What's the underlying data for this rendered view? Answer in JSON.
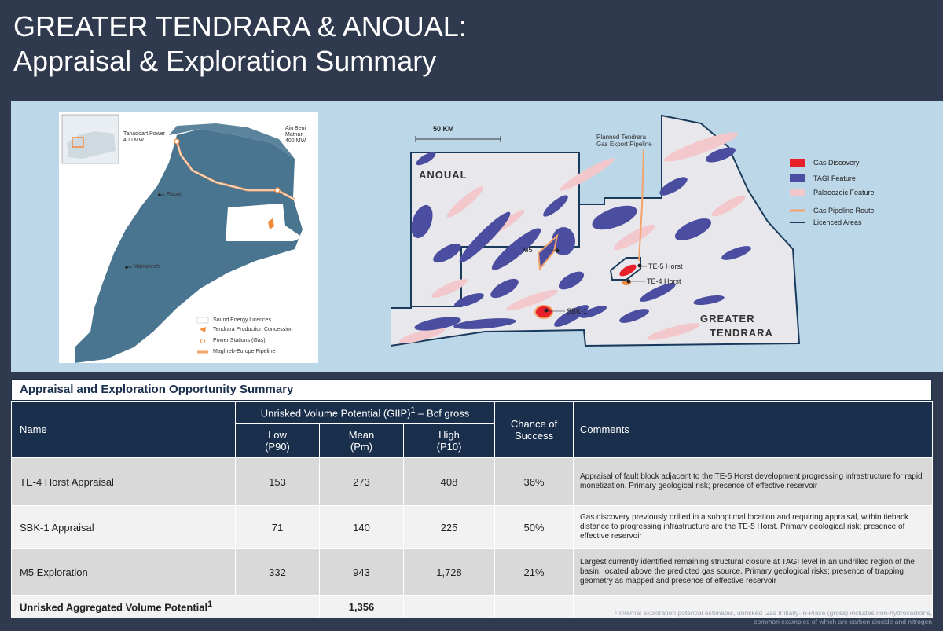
{
  "title": {
    "line1": "GREATER TENDRARA & ANOUAL:",
    "line2": "Appraisal & Exploration Summary"
  },
  "left_map": {
    "labels": {
      "tahaddart": "Tahaddart Power",
      "tahaddart_mw": "400 MW",
      "ain_beni": "Ain Beni",
      "mathar": "Mathar",
      "ain_mw": "400 MW",
      "rabat": "Rabat",
      "marrakech": "Marrakech"
    },
    "legend": [
      "Sound Energy Licences",
      "Tendrara Production Concession",
      "Power Stations (Gas)",
      "Maghreb-Europe Pipeline"
    ],
    "colors": {
      "land": "#4a7590",
      "licence": "#ffffff",
      "pipeline": "#f2a36a",
      "concession": "#f08a3a"
    }
  },
  "right_map": {
    "scale_label": "50 KM",
    "pipeline_label_1": "Planned Tendrara",
    "pipeline_label_2": "Gas Export Pipeline",
    "anoual": "ANOUAL",
    "greater": "GREATER",
    "tendrara": "TENDRARA",
    "m5": "M5",
    "te5": "TE-5 Horst",
    "te4": "TE-4 Horst",
    "sbk1": "SBK-1",
    "legend": [
      {
        "label": "Gas Discovery",
        "color": "#e8202a"
      },
      {
        "label": "TAGI Feature",
        "color": "#4b4ea0"
      },
      {
        "label": "Palaeozoic Feature",
        "color": "#f3c8cc"
      },
      {
        "label": "Gas Pipeline Route",
        "color": "#f2a36a"
      },
      {
        "label": "Licenced Areas",
        "color": "#1a3a5c"
      }
    ]
  },
  "table": {
    "heading": "Appraisal and Exploration Opportunity Summary",
    "col_name": "Name",
    "group_header_pre": "Unrisked Volume Potential (GIIP)",
    "group_header_sup": "1",
    "group_header_post": " – Bcf gross",
    "col_low_1": "Low",
    "col_low_2": "(P90)",
    "col_mean_1": "Mean",
    "col_mean_2": "(Pm)",
    "col_high_1": "High",
    "col_high_2": "(P10)",
    "col_chance_1": "Chance of",
    "col_chance_2": "Success",
    "col_comments": "Comments",
    "rows": [
      {
        "name": "TE-4 Horst Appraisal",
        "low": "153",
        "mean": "273",
        "high": "408",
        "chance": "36%",
        "comment": "Appraisal of fault block adjacent to the TE-5 Horst development progressing infrastructure for rapid monetization. Primary geological risk; presence of effective reservoir"
      },
      {
        "name": "SBK-1 Appraisal",
        "low": "71",
        "mean": "140",
        "high": "225",
        "chance": "50%",
        "comment": "Gas discovery previously drilled in a suboptimal location and requiring appraisal, within tieback distance to progressing infrastructure are the TE-5 Horst. Primary geological risk; presence of effective reservoir"
      },
      {
        "name": "M5 Exploration",
        "low": "332",
        "mean": "943",
        "high": "1,728",
        "chance": "21%",
        "comment": "Largest currently identified remaining structural closure at TAGI level in an undrilled region of the basin, located above the predicted gas source.  Primary geological risks; presence of trapping geometry as mapped and presence of effective reservoir"
      }
    ],
    "total_label": "Unrisked Aggregated Volume Potential",
    "total_sup": "1",
    "total_value": "1,356"
  },
  "footnote": {
    "line1": "¹ Internal exploration potential estimates, unrisked Gas Initially-In-Place (gross) includes non-hydrocarbons,",
    "line2": "common examples of which are carbon dioxide and nitrogen"
  }
}
